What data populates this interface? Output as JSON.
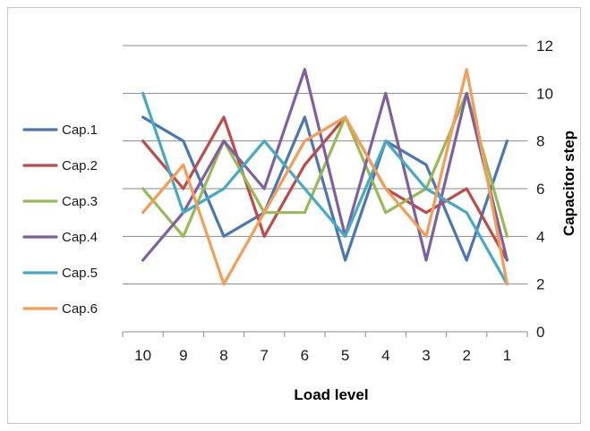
{
  "chart_data": {
    "type": "line",
    "xlabel": "Load level",
    "ylabel": "Capacitor step",
    "categories": [
      "10",
      "9",
      "8",
      "7",
      "6",
      "5",
      "4",
      "3",
      "2",
      "1"
    ],
    "ylim": [
      0,
      12
    ],
    "yticks": [
      0,
      2,
      4,
      6,
      8,
      10,
      12
    ],
    "y_axis_side": "right",
    "grid": "horizontal",
    "legend_position": "left",
    "series": [
      {
        "name": "Cap.1",
        "color": "#4a77b4",
        "values": [
          9,
          8,
          4,
          5,
          9,
          3,
          8,
          7,
          3,
          8
        ]
      },
      {
        "name": "Cap.2",
        "color": "#be4b48",
        "values": [
          8,
          6,
          9,
          4,
          7,
          9,
          6,
          5,
          6,
          3
        ]
      },
      {
        "name": "Cap.3",
        "color": "#98b954",
        "values": [
          6,
          4,
          8,
          5,
          5,
          9,
          5,
          6,
          10,
          4
        ]
      },
      {
        "name": "Cap.4",
        "color": "#7d60a0",
        "values": [
          3,
          5,
          8,
          6,
          11,
          4,
          10,
          3,
          10,
          3
        ]
      },
      {
        "name": "Cap.5",
        "color": "#46aac4",
        "values": [
          10,
          5,
          6,
          8,
          6,
          4,
          8,
          6,
          5,
          2
        ]
      },
      {
        "name": "Cap.6",
        "color": "#f59d56",
        "values": [
          5,
          7,
          2,
          5,
          8,
          9,
          6,
          4,
          11,
          2
        ]
      }
    ]
  }
}
